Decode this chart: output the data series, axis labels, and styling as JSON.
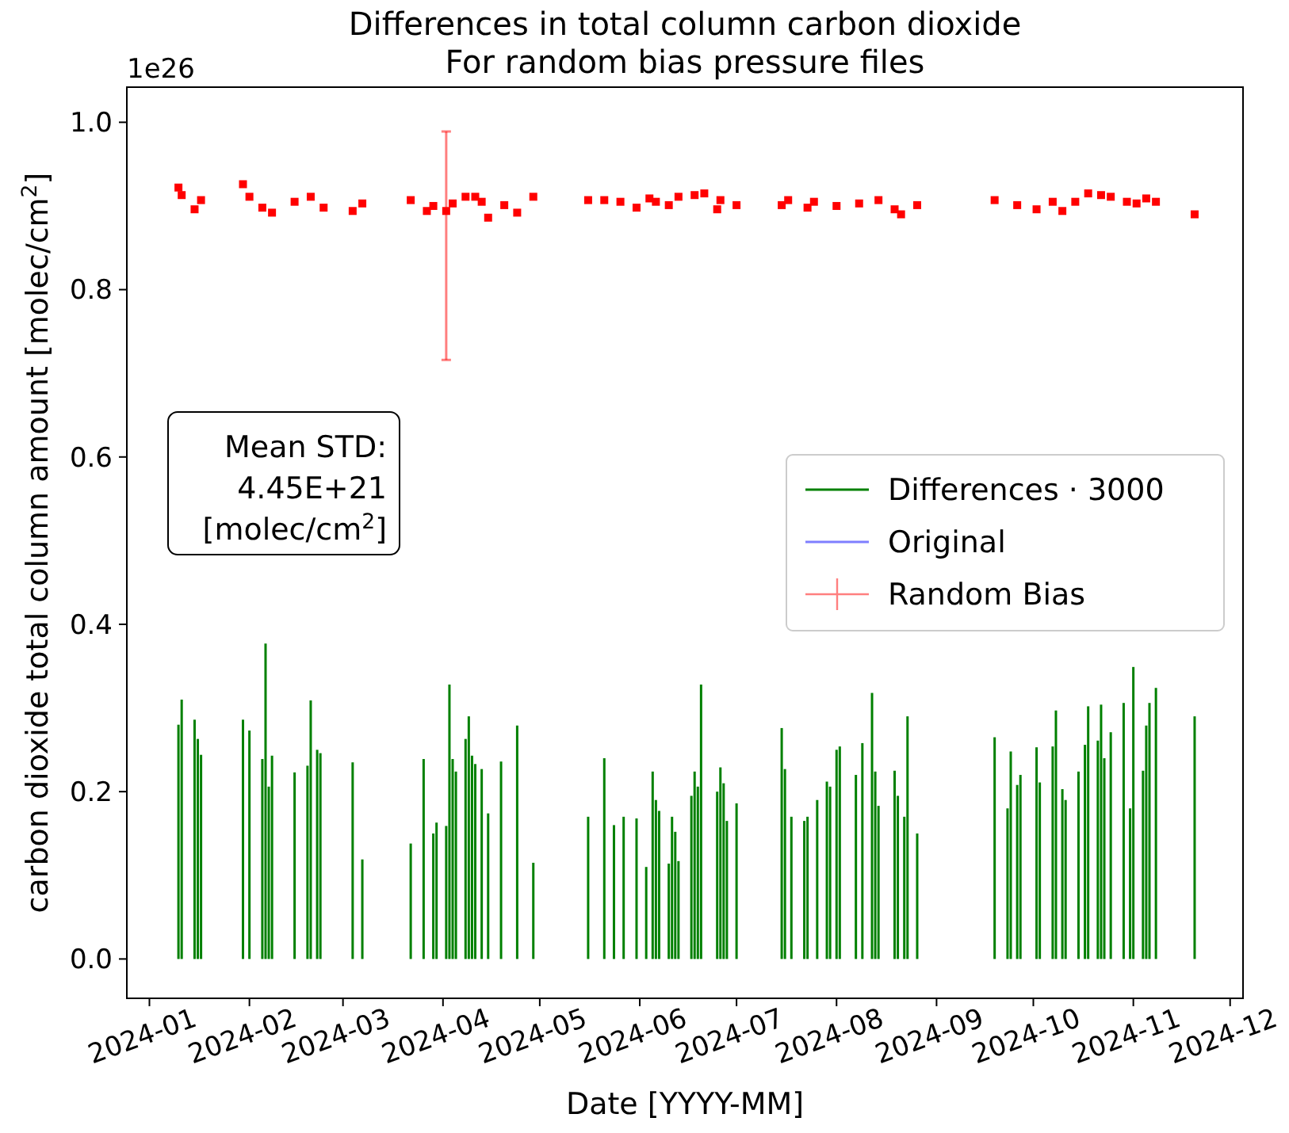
{
  "chart_data": {
    "type": "bar",
    "title": "Differences in total column carbon dioxide",
    "subtitle": "For random bias pressure files",
    "xlabel": "Date [YYYY-MM]",
    "ylabel": "carbon dioxide total column amount [molec/cm$^{2}$]",
    "annotations": [
      "1e26",
      "Mean STD:\n4.45E+21\n[molec/cm$^{2}$]"
    ],
    "xlim": [
      "2023-12-25",
      "2024-12-05"
    ],
    "xticks": [
      "2024-01",
      "2024-02",
      "2024-03",
      "2024-04",
      "2024-05",
      "2024-06",
      "2024-07",
      "2024-08",
      "2024-09",
      "2024-10",
      "2024-11",
      "2024-12"
    ],
    "ylim": [
      -0.047,
      1.042
    ],
    "yticks": [
      {
        "value": 0,
        "label": "0.0"
      },
      0.2,
      0.4,
      0.6,
      0.8,
      {
        "value": 1,
        "label": "1.0"
      }
    ],
    "grid": false,
    "legend": "right",
    "series": [
      {
        "name": "Differences · 3000",
        "color": "#008000",
        "x": [
          "2024-01-10",
          "2024-01-11",
          "2024-01-15",
          "2024-01-16",
          "2024-01-17",
          "2024-01-30",
          "2024-02-01",
          "2024-02-05",
          "2024-02-06",
          "2024-02-07",
          "2024-02-08",
          "2024-02-15",
          "2024-02-19",
          "2024-02-20",
          "2024-02-22",
          "2024-02-23",
          "2024-03-04",
          "2024-03-07",
          "2024-03-22",
          "2024-03-26",
          "2024-03-29",
          "2024-03-30",
          "2024-04-02",
          "2024-04-03",
          "2024-04-04",
          "2024-04-05",
          "2024-04-08",
          "2024-04-09",
          "2024-04-10",
          "2024-04-11",
          "2024-04-13",
          "2024-04-15",
          "2024-04-19",
          "2024-04-24",
          "2024-04-29",
          "2024-05-16",
          "2024-05-21",
          "2024-05-24",
          "2024-05-27",
          "2024-05-31",
          "2024-06-03",
          "2024-06-05",
          "2024-06-06",
          "2024-06-07",
          "2024-06-10",
          "2024-06-11",
          "2024-06-12",
          "2024-06-13",
          "2024-06-17",
          "2024-06-18",
          "2024-06-19",
          "2024-06-20",
          "2024-06-25",
          "2024-06-26",
          "2024-06-27",
          "2024-06-28",
          "2024-07-01",
          "2024-07-15",
          "2024-07-16",
          "2024-07-18",
          "2024-07-22",
          "2024-07-23",
          "2024-07-26",
          "2024-07-29",
          "2024-07-30",
          "2024-08-01",
          "2024-08-02",
          "2024-08-07",
          "2024-08-09",
          "2024-08-12",
          "2024-08-13",
          "2024-08-14",
          "2024-08-19",
          "2024-08-20",
          "2024-08-22",
          "2024-08-23",
          "2024-08-26",
          "2024-09-19",
          "2024-09-23",
          "2024-09-24",
          "2024-09-26",
          "2024-09-27",
          "2024-10-02",
          "2024-10-03",
          "2024-10-07",
          "2024-10-08",
          "2024-10-10",
          "2024-10-11",
          "2024-10-15",
          "2024-10-17",
          "2024-10-18",
          "2024-10-21",
          "2024-10-22",
          "2024-10-23",
          "2024-10-25",
          "2024-10-29",
          "2024-10-31",
          "2024-11-01",
          "2024-11-04",
          "2024-11-05",
          "2024-11-06",
          "2024-11-08",
          "2024-11-20"
        ],
        "values": [
          0.28,
          0.31,
          0.286,
          0.263,
          0.244,
          0.286,
          0.273,
          0.239,
          0.377,
          0.206,
          0.243,
          0.223,
          0.231,
          0.309,
          0.25,
          0.246,
          0.235,
          0.119,
          0.138,
          0.239,
          0.15,
          0.163,
          0.159,
          0.328,
          0.239,
          0.224,
          0.263,
          0.29,
          0.243,
          0.233,
          0.227,
          0.174,
          0.236,
          0.279,
          0.115,
          0.17,
          0.24,
          0.16,
          0.17,
          0.168,
          0.11,
          0.224,
          0.19,
          0.177,
          0.114,
          0.17,
          0.152,
          0.117,
          0.195,
          0.224,
          0.206,
          0.328,
          0.2,
          0.229,
          0.21,
          0.165,
          0.186,
          0.276,
          0.227,
          0.17,
          0.165,
          0.17,
          0.19,
          0.212,
          0.206,
          0.25,
          0.254,
          0.22,
          0.258,
          0.318,
          0.224,
          0.183,
          0.225,
          0.195,
          0.17,
          0.29,
          0.15,
          0.265,
          0.18,
          0.248,
          0.208,
          0.22,
          0.253,
          0.211,
          0.254,
          0.297,
          0.203,
          0.19,
          0.224,
          0.256,
          0.302,
          0.261,
          0.304,
          0.24,
          0.271,
          0.306,
          0.18,
          0.349,
          0.225,
          0.279,
          0.306,
          0.324,
          0.29
        ]
      },
      {
        "name": "Original",
        "type": "line",
        "color": "#7f7fff"
      },
      {
        "name": "Random Bias",
        "type": "scatter",
        "marker": "square",
        "color": "#ff0000",
        "x": [
          "2024-01-10",
          "2024-01-11",
          "2024-01-15",
          "2024-01-17",
          "2024-01-30",
          "2024-02-01",
          "2024-02-05",
          "2024-02-08",
          "2024-02-15",
          "2024-02-20",
          "2024-02-24",
          "2024-03-04",
          "2024-03-07",
          "2024-03-22",
          "2024-03-27",
          "2024-03-29",
          "2024-04-02",
          "2024-04-04",
          "2024-04-08",
          "2024-04-11",
          "2024-04-13",
          "2024-04-15",
          "2024-04-20",
          "2024-04-24",
          "2024-04-29",
          "2024-05-16",
          "2024-05-21",
          "2024-05-26",
          "2024-05-31",
          "2024-06-04",
          "2024-06-06",
          "2024-06-10",
          "2024-06-13",
          "2024-06-18",
          "2024-06-21",
          "2024-06-25",
          "2024-06-26",
          "2024-07-01",
          "2024-07-15",
          "2024-07-17",
          "2024-07-23",
          "2024-07-25",
          "2024-08-01",
          "2024-08-08",
          "2024-08-14",
          "2024-08-19",
          "2024-08-21",
          "2024-08-26",
          "2024-09-19",
          "2024-09-26",
          "2024-10-02",
          "2024-10-07",
          "2024-10-10",
          "2024-10-14",
          "2024-10-18",
          "2024-10-22",
          "2024-10-25",
          "2024-10-30",
          "2024-11-02",
          "2024-11-05",
          "2024-11-08",
          "2024-11-20"
        ],
        "values": [
          0.922,
          0.913,
          0.896,
          0.907,
          0.926,
          0.911,
          0.898,
          0.892,
          0.905,
          0.911,
          0.898,
          0.894,
          0.903,
          0.907,
          0.894,
          0.9,
          0.894,
          0.903,
          0.911,
          0.911,
          0.905,
          0.886,
          0.901,
          0.892,
          0.911,
          0.907,
          0.907,
          0.905,
          0.898,
          0.909,
          0.905,
          0.901,
          0.911,
          0.913,
          0.915,
          0.896,
          0.907,
          0.901,
          0.901,
          0.907,
          0.898,
          0.905,
          0.9,
          0.903,
          0.907,
          0.896,
          0.89,
          0.901,
          0.907,
          0.901,
          0.896,
          0.905,
          0.894,
          0.905,
          0.915,
          0.913,
          0.911,
          0.905,
          0.903,
          0.909,
          0.905,
          0.89
        ],
        "errors": [
          null,
          null,
          null,
          null,
          null,
          null,
          null,
          null,
          null,
          null,
          null,
          null,
          null,
          null,
          null,
          null,
          [
            0.716,
            0.989
          ],
          null,
          null,
          null,
          null,
          null,
          null,
          null,
          null,
          null,
          null,
          null,
          null,
          null,
          null,
          null,
          null,
          null,
          null,
          null,
          null,
          null,
          null,
          null,
          null,
          null,
          null,
          null,
          null,
          null,
          null,
          null,
          null,
          null,
          null,
          null,
          null,
          null,
          null,
          null,
          null,
          null,
          null,
          null,
          null,
          null
        ]
      }
    ]
  }
}
